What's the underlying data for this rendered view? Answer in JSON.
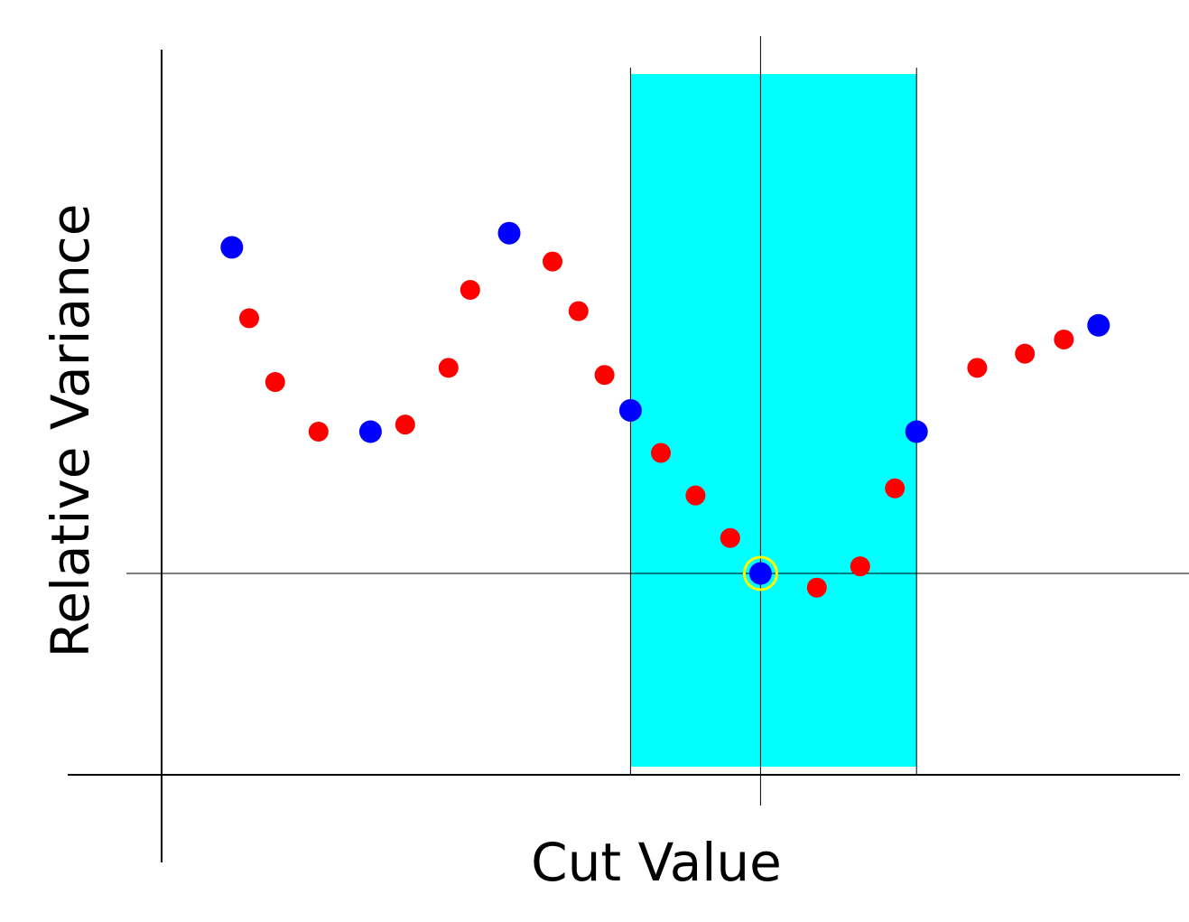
{
  "chart_data": {
    "type": "scatter",
    "title": "",
    "xlabel": "Cut Value",
    "ylabel": "Relative Variance",
    "xlim": [
      0,
      113
    ],
    "ylim": [
      -14,
      46
    ],
    "grid": false,
    "highlight_band": {
      "x_start": 54,
      "x_end": 87,
      "color": "#00ffff"
    },
    "reference_lines": {
      "x": 69,
      "y": 0
    },
    "series": [
      {
        "color": "#ff0000",
        "x": [
          10,
          13,
          18,
          28,
          33,
          35.5,
          45,
          48,
          51,
          57.5,
          61.5,
          65.5,
          75.5,
          80.5,
          84.5,
          94,
          99.5,
          104
        ],
        "y": [
          18,
          13.5,
          10,
          10.5,
          14.5,
          20,
          22,
          18.5,
          14,
          8.5,
          5.5,
          2.5,
          -1,
          0.5,
          6,
          14.5,
          15.5,
          16.5
        ]
      },
      {
        "color": "#0000ff",
        "x": [
          8,
          24,
          40,
          54,
          69,
          87,
          108
        ],
        "y": [
          23,
          10,
          24,
          11.5,
          0,
          10,
          17.5
        ]
      }
    ],
    "selected_point": {
      "x": 69,
      "y": 0,
      "ring_color": "#ffff00"
    }
  }
}
